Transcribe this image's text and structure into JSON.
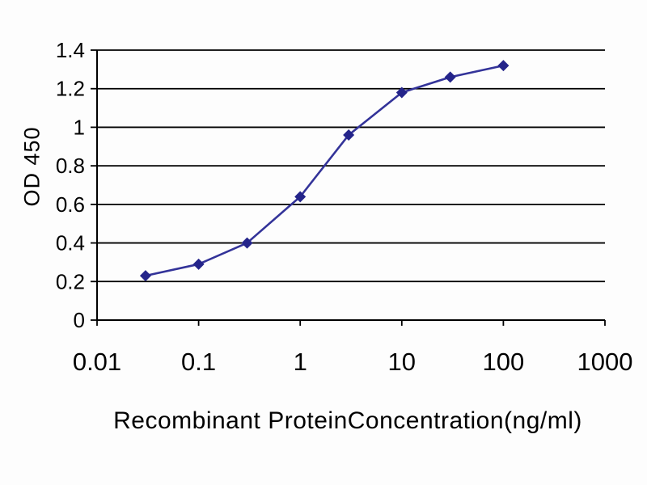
{
  "chart_data": {
    "type": "line",
    "title": "",
    "xlabel": "Recombinant ProteinConcentration(ng/ml)",
    "ylabel": "OD 450",
    "xscale": "log",
    "yscale": "linear",
    "xlim": [
      0.01,
      1000
    ],
    "ylim": [
      0,
      1.4
    ],
    "x_ticks": [
      0.01,
      0.1,
      1,
      10,
      100,
      1000
    ],
    "x_tick_labels": [
      "0.01",
      "0.1",
      "1",
      "10",
      "100",
      "1000"
    ],
    "y_ticks": [
      0,
      0.2,
      0.4,
      0.6,
      0.8,
      1,
      1.2,
      1.4
    ],
    "y_tick_labels": [
      "0",
      "0.2",
      "0.4",
      "0.6",
      "0.8",
      "1",
      "1.2",
      "1.4"
    ],
    "grid": "horizontal",
    "legend": "none",
    "series": [
      {
        "name": "OD 450",
        "x": [
          0.03,
          0.1,
          0.3,
          1,
          3,
          10,
          30,
          100
        ],
        "values": [
          0.23,
          0.29,
          0.4,
          0.64,
          0.96,
          1.18,
          1.26,
          1.32
        ]
      }
    ],
    "line_color": "#333399",
    "marker": "diamond",
    "marker_color": "#24248a",
    "axis_color": "#000000",
    "background_color": "#fdfdfd"
  }
}
